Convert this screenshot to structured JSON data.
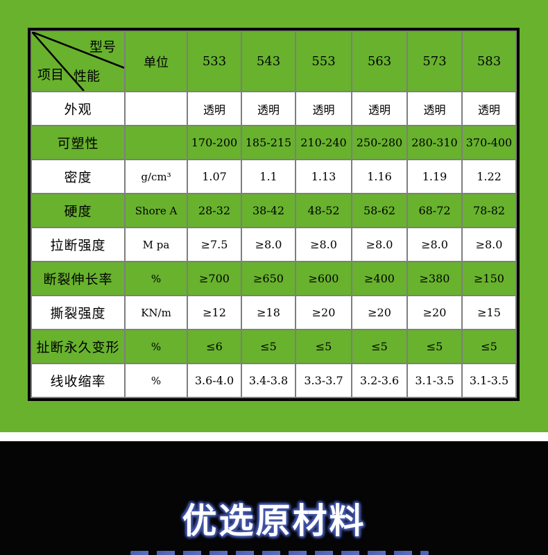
{
  "table": {
    "corner": {
      "top_right": "型号",
      "middle": "性能",
      "bottom_left": "项目"
    },
    "unit_header": "单位",
    "models": [
      "533",
      "543",
      "553",
      "563",
      "573",
      "583"
    ],
    "rows": [
      {
        "label": "外观",
        "unit": "",
        "values": [
          "透明",
          "透明",
          "透明",
          "透明",
          "透明",
          "透明"
        ]
      },
      {
        "label": "可塑性",
        "unit": "",
        "values": [
          "170-200",
          "185-215",
          "210-240",
          "250-280",
          "280-310",
          "370-400"
        ]
      },
      {
        "label": "密度",
        "unit": "g/cm³",
        "values": [
          "1.07",
          "1.1",
          "1.13",
          "1.16",
          "1.19",
          "1.22"
        ]
      },
      {
        "label": "硬度",
        "unit": "Shore A",
        "values": [
          "28-32",
          "38-42",
          "48-52",
          "58-62",
          "68-72",
          "78-82"
        ]
      },
      {
        "label": "拉断强度",
        "unit": "M pa",
        "values": [
          "≥7.5",
          "≥8.0",
          "≥8.0",
          "≥8.0",
          "≥8.0",
          "≥8.0"
        ]
      },
      {
        "label": "断裂伸长率",
        "unit": "%",
        "values": [
          "≥700",
          "≥650",
          "≥600",
          "≥400",
          "≥380",
          "≥150"
        ]
      },
      {
        "label": "撕裂强度",
        "unit": "KN/m",
        "values": [
          "≥12",
          "≥18",
          "≥20",
          "≥20",
          "≥20",
          "≥15"
        ]
      },
      {
        "label": "扯断永久变形",
        "unit": "%",
        "values": [
          "≤6",
          "≤5",
          "≤5",
          "≤5",
          "≤5",
          "≤5"
        ]
      },
      {
        "label": "线收缩率",
        "unit": "%",
        "values": [
          "3.6-4.0",
          "3.4-3.8",
          "3.3-3.7",
          "3.2-3.6",
          "3.1-3.5",
          "3.1-3.5"
        ]
      }
    ]
  },
  "banner": {
    "title": "优选原材料"
  },
  "colors": {
    "background_green": "#68b22e",
    "grid_gray": "#7e7e7e",
    "banner_glow_blue": "#4456a8",
    "row_white": "#ffffff",
    "banner_black": "#050505"
  }
}
